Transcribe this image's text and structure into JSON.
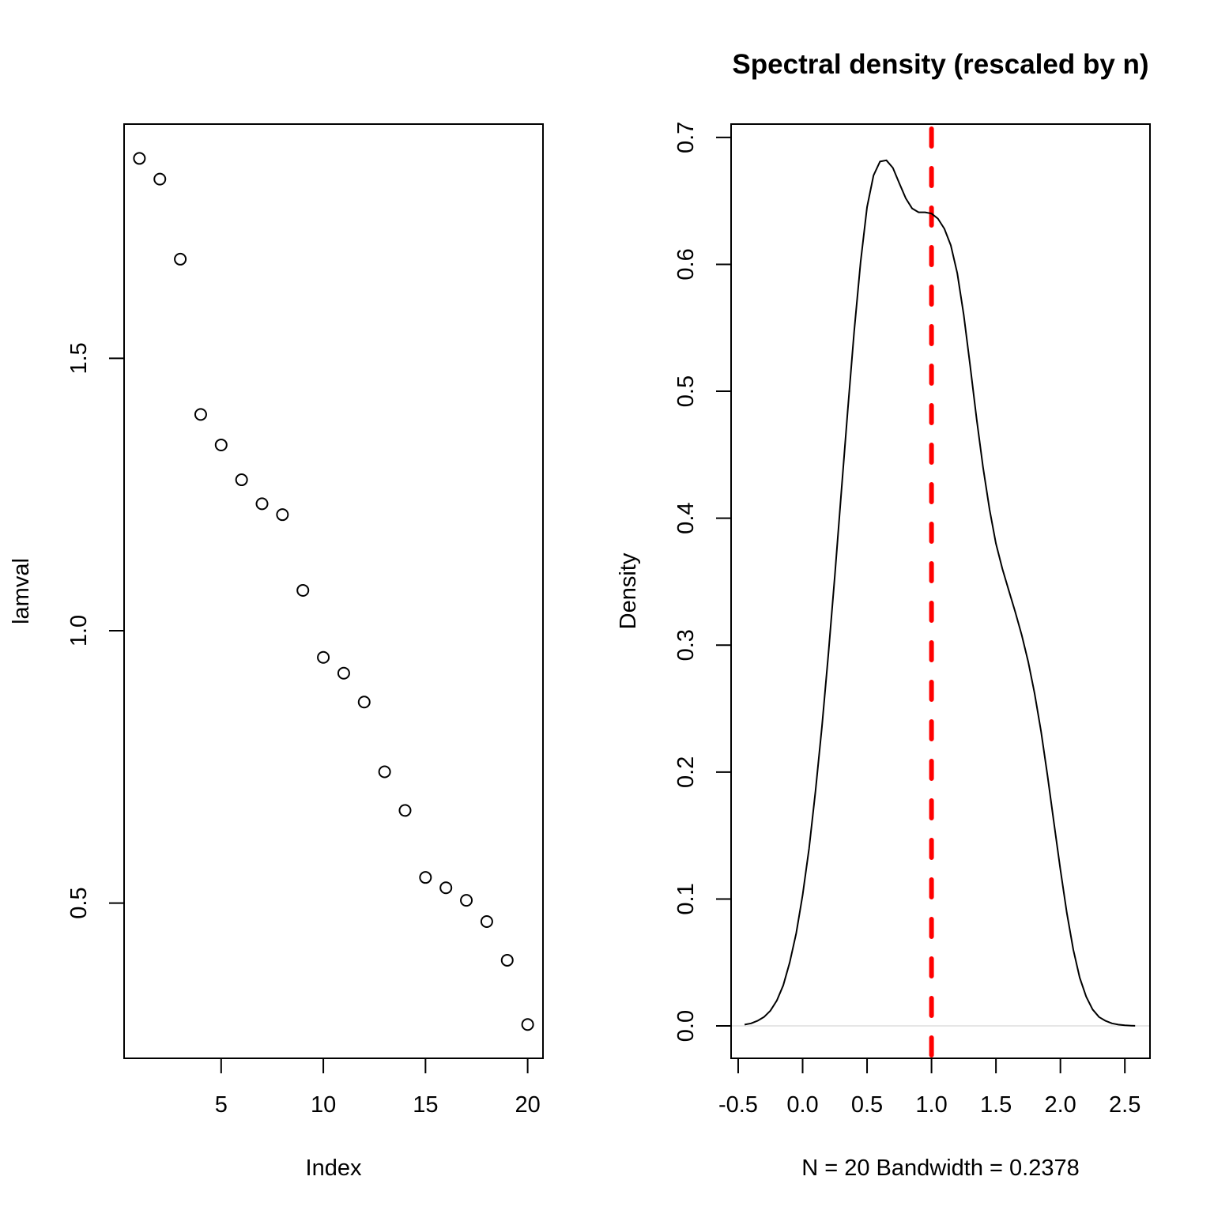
{
  "chart_data": [
    {
      "type": "scatter",
      "title": "",
      "xlabel": "Index",
      "ylabel": "lamval",
      "xlim": [
        0.25,
        20.75
      ],
      "ylim": [
        0.215,
        1.93
      ],
      "xticks": [
        5,
        10,
        15,
        20
      ],
      "xtick_labels": [
        "5",
        "10",
        "15",
        "20"
      ],
      "yticks": [
        0.5,
        1.0,
        1.5
      ],
      "ytick_labels": [
        "0.5",
        "1.0",
        "1.5"
      ],
      "grid": false,
      "marker": "open-circle",
      "x": [
        1,
        2,
        3,
        4,
        5,
        6,
        7,
        8,
        9,
        10,
        11,
        12,
        13,
        14,
        15,
        16,
        17,
        18,
        19,
        20
      ],
      "y": [
        1.867,
        1.829,
        1.682,
        1.397,
        1.341,
        1.277,
        1.233,
        1.213,
        1.074,
        0.951,
        0.922,
        0.869,
        0.741,
        0.67,
        0.547,
        0.528,
        0.505,
        0.466,
        0.395,
        0.277
      ]
    },
    {
      "type": "line",
      "title": "Spectral density (rescaled by n)",
      "xlabel": "N = 20   Bandwidth = 0.2378",
      "ylabel": "Density",
      "xlim": [
        -0.555,
        2.695
      ],
      "ylim": [
        -0.0255,
        0.7105
      ],
      "xticks": [
        -0.5,
        0.0,
        0.5,
        1.0,
        1.5,
        2.0,
        2.5
      ],
      "xtick_labels": [
        "-0.5",
        "0.0",
        "0.5",
        "1.0",
        "1.5",
        "2.0",
        "2.5"
      ],
      "yticks": [
        0.0,
        0.1,
        0.2,
        0.3,
        0.4,
        0.5,
        0.6,
        0.7
      ],
      "ytick_labels": [
        "0.0",
        "0.1",
        "0.2",
        "0.3",
        "0.4",
        "0.5",
        "0.6",
        "0.7"
      ],
      "grid": false,
      "series": [
        {
          "name": "density",
          "color": "#000000",
          "x": [
            -0.45,
            -0.4,
            -0.35,
            -0.3,
            -0.25,
            -0.2,
            -0.15,
            -0.1,
            -0.05,
            0.0,
            0.05,
            0.1,
            0.15,
            0.2,
            0.25,
            0.3,
            0.35,
            0.4,
            0.45,
            0.5,
            0.55,
            0.6,
            0.65,
            0.7,
            0.75,
            0.8,
            0.85,
            0.9,
            0.95,
            1.0,
            1.05,
            1.1,
            1.15,
            1.2,
            1.25,
            1.3,
            1.35,
            1.4,
            1.45,
            1.5,
            1.55,
            1.6,
            1.65,
            1.7,
            1.75,
            1.8,
            1.85,
            1.9,
            1.95,
            2.0,
            2.05,
            2.1,
            2.15,
            2.2,
            2.25,
            2.3,
            2.35,
            2.4,
            2.45,
            2.5,
            2.55,
            2.58
          ],
          "y": [
            0.001,
            0.002,
            0.004,
            0.007,
            0.012,
            0.02,
            0.032,
            0.05,
            0.073,
            0.103,
            0.14,
            0.185,
            0.236,
            0.293,
            0.355,
            0.42,
            0.485,
            0.547,
            0.602,
            0.645,
            0.67,
            0.681,
            0.682,
            0.676,
            0.664,
            0.652,
            0.644,
            0.641,
            0.641,
            0.64,
            0.636,
            0.628,
            0.615,
            0.593,
            0.56,
            0.52,
            0.478,
            0.44,
            0.407,
            0.38,
            0.36,
            0.343,
            0.326,
            0.308,
            0.287,
            0.262,
            0.232,
            0.197,
            0.16,
            0.123,
            0.089,
            0.06,
            0.038,
            0.023,
            0.013,
            0.007,
            0.004,
            0.002,
            0.001,
            0.0005,
            0.0002,
            0.0001
          ]
        }
      ],
      "reference_lines": [
        {
          "orientation": "vertical",
          "x": 1.0,
          "color": "#ff0000",
          "style": "dashed",
          "label": "reference x = 1"
        },
        {
          "orientation": "horizontal",
          "y": 0.0,
          "color": "#cccccc",
          "style": "solid",
          "label": "zero line"
        }
      ]
    }
  ]
}
